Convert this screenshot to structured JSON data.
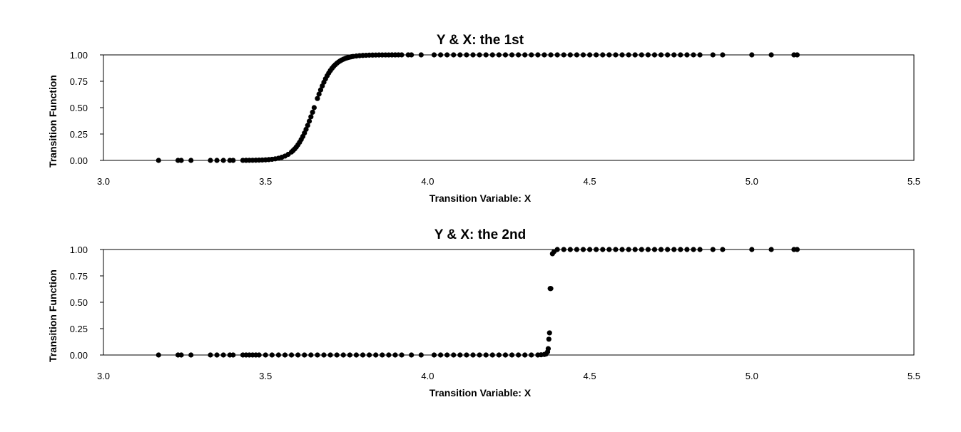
{
  "chart_data": [
    {
      "type": "scatter",
      "title": "Y & X: the 1st",
      "xlabel": "Transition Variable: X",
      "ylabel": "Transition Function",
      "xlim": [
        3.0,
        5.5
      ],
      "ylim": [
        0.0,
        1.0
      ],
      "xticks": [
        "3.0",
        "3.5",
        "4.0",
        "4.5",
        "5.0",
        "5.5"
      ],
      "yticks": [
        "0.00",
        "0.25",
        "0.50",
        "0.75",
        "1.00"
      ],
      "grid": false,
      "legend": "none",
      "marker_color": "#000000",
      "transition": {
        "kind": "logistic",
        "center": 3.65,
        "slope": 35
      },
      "x": [
        3.17,
        3.23,
        3.24,
        3.27,
        3.33,
        3.35,
        3.37,
        3.39,
        3.4,
        3.43,
        3.44,
        3.45,
        3.46,
        3.47,
        3.48,
        3.49,
        3.5,
        3.51,
        3.52,
        3.53,
        3.54,
        3.55,
        3.56,
        3.57,
        3.58,
        3.585,
        3.59,
        3.595,
        3.6,
        3.605,
        3.61,
        3.615,
        3.62,
        3.625,
        3.63,
        3.635,
        3.64,
        3.645,
        3.65,
        3.66,
        3.665,
        3.67,
        3.675,
        3.68,
        3.685,
        3.69,
        3.695,
        3.7,
        3.705,
        3.71,
        3.715,
        3.72,
        3.725,
        3.73,
        3.735,
        3.74,
        3.745,
        3.75,
        3.755,
        3.76,
        3.765,
        3.77,
        3.78,
        3.79,
        3.8,
        3.81,
        3.82,
        3.83,
        3.84,
        3.85,
        3.86,
        3.87,
        3.88,
        3.89,
        3.9,
        3.91,
        3.92,
        3.94,
        3.95,
        3.98,
        4.02,
        4.04,
        4.06,
        4.08,
        4.1,
        4.12,
        4.14,
        4.16,
        4.18,
        4.2,
        4.22,
        4.24,
        4.26,
        4.28,
        4.3,
        4.32,
        4.34,
        4.36,
        4.38,
        4.4,
        4.42,
        4.44,
        4.46,
        4.48,
        4.5,
        4.52,
        4.54,
        4.56,
        4.58,
        4.6,
        4.62,
        4.64,
        4.66,
        4.68,
        4.7,
        4.72,
        4.74,
        4.76,
        4.78,
        4.8,
        4.82,
        4.84,
        4.88,
        4.91,
        5.0,
        5.06,
        5.13,
        5.14
      ]
    },
    {
      "type": "scatter",
      "title": "Y & X: the 2nd",
      "xlabel": "Transition Variable: X",
      "ylabel": "Transition Function",
      "xlim": [
        3.0,
        5.5
      ],
      "ylim": [
        0.0,
        1.0
      ],
      "xticks": [
        "3.0",
        "3.5",
        "4.0",
        "4.5",
        "5.0",
        "5.5"
      ],
      "yticks": [
        "0.00",
        "0.25",
        "0.50",
        "0.75",
        "1.00"
      ],
      "grid": false,
      "legend": "none",
      "marker_color": "#000000",
      "x": [
        3.17,
        3.23,
        3.24,
        3.27,
        3.33,
        3.35,
        3.37,
        3.39,
        3.4,
        3.43,
        3.44,
        3.45,
        3.46,
        3.47,
        3.48,
        3.5,
        3.52,
        3.54,
        3.56,
        3.58,
        3.6,
        3.62,
        3.64,
        3.66,
        3.68,
        3.7,
        3.72,
        3.74,
        3.76,
        3.78,
        3.8,
        3.82,
        3.84,
        3.86,
        3.88,
        3.9,
        3.92,
        3.95,
        3.98,
        4.02,
        4.04,
        4.06,
        4.08,
        4.1,
        4.12,
        4.14,
        4.16,
        4.18,
        4.2,
        4.22,
        4.24,
        4.26,
        4.28,
        4.3,
        4.32,
        4.34,
        4.35,
        4.36,
        4.365,
        4.37,
        4.372,
        4.374,
        4.376,
        4.378,
        4.38,
        4.385,
        4.39,
        4.4,
        4.42,
        4.44,
        4.46,
        4.48,
        4.5,
        4.52,
        4.54,
        4.56,
        4.58,
        4.6,
        4.62,
        4.64,
        4.66,
        4.68,
        4.7,
        4.72,
        4.74,
        4.76,
        4.78,
        4.8,
        4.82,
        4.84,
        4.88,
        4.91,
        5.0,
        5.06,
        5.13,
        5.14
      ],
      "y": [
        0,
        0,
        0,
        0,
        0,
        0,
        0,
        0,
        0,
        0,
        0,
        0,
        0,
        0,
        0,
        0,
        0,
        0,
        0,
        0,
        0,
        0,
        0,
        0,
        0,
        0,
        0,
        0,
        0,
        0,
        0,
        0,
        0,
        0,
        0,
        0,
        0,
        0,
        0,
        0,
        0,
        0,
        0,
        0,
        0,
        0,
        0,
        0,
        0,
        0,
        0,
        0,
        0,
        0,
        0,
        0,
        0.002,
        0.005,
        0.01,
        0.03,
        0.06,
        0.15,
        0.21,
        0.63,
        0.63,
        0.96,
        0.98,
        1,
        1,
        1,
        1,
        1,
        1,
        1,
        1,
        1,
        1,
        1,
        1,
        1,
        1,
        1,
        1,
        1,
        1,
        1,
        1,
        1,
        1,
        1,
        1,
        1,
        1,
        1,
        1,
        1
      ]
    }
  ]
}
